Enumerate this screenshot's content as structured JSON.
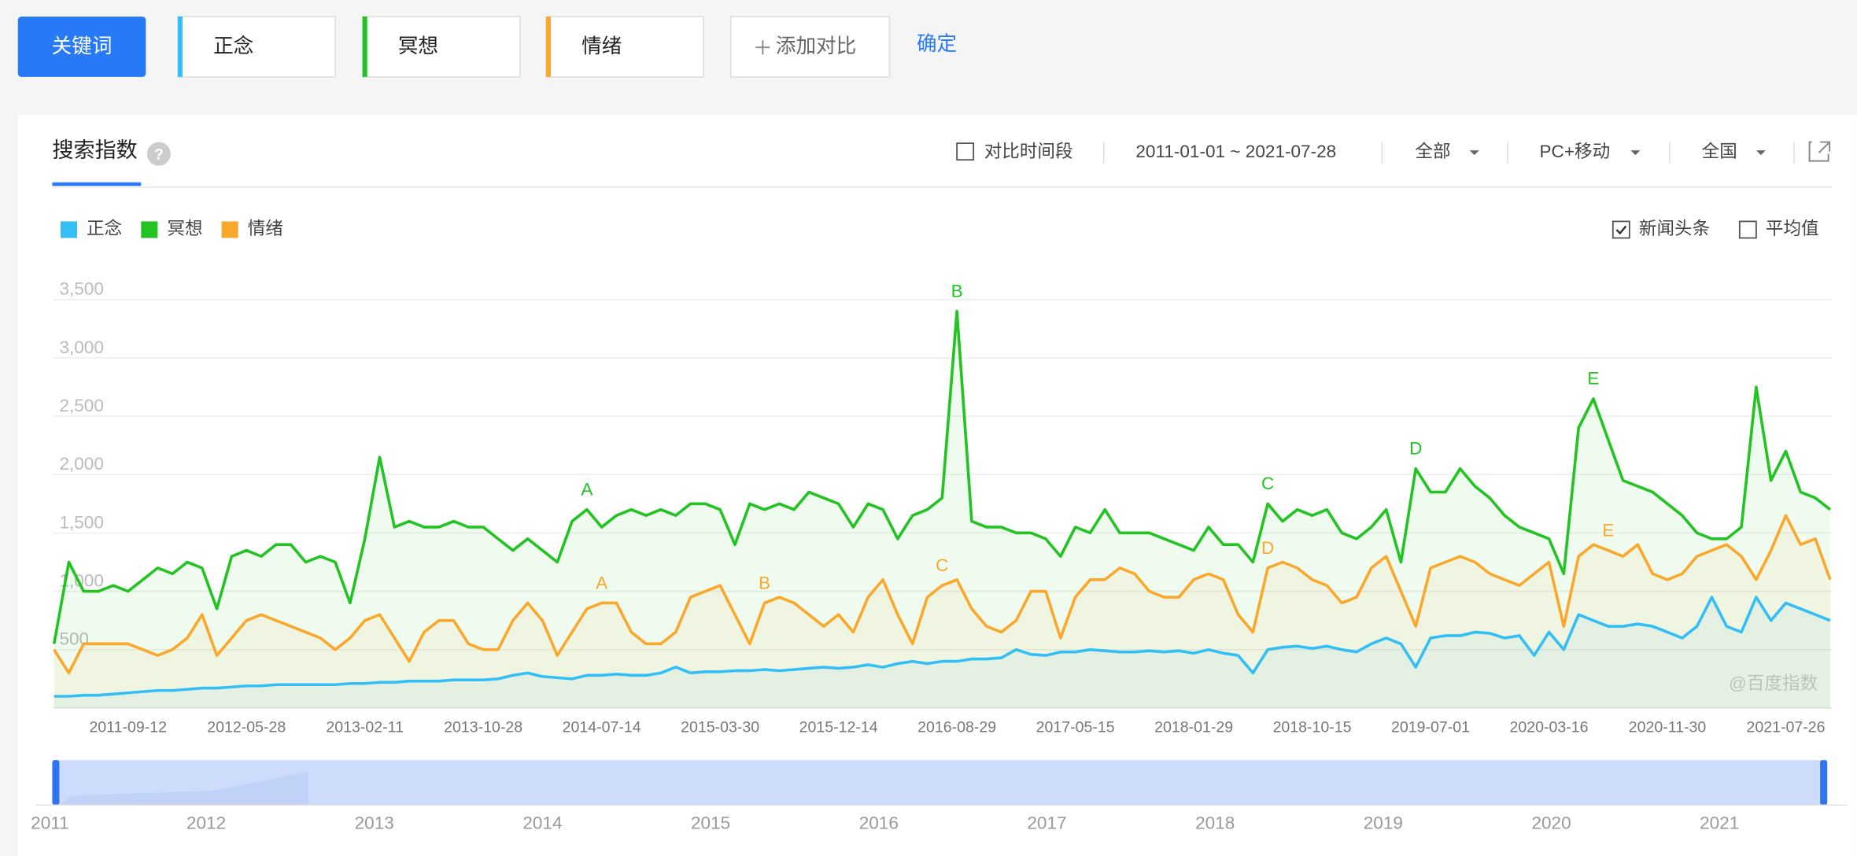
{
  "header": {
    "keyword_button": "关键词",
    "keywords": [
      "正念",
      "冥想",
      "情绪"
    ],
    "add_button": "添加对比",
    "confirm": "确定"
  },
  "panel": {
    "tab": "搜索指数",
    "help": "?",
    "compare_period": "对比时间段",
    "date_range": "2011-01-01 ~ 2021-07-28",
    "filters": [
      "全部",
      "PC+移动",
      "全国"
    ],
    "options": [
      {
        "label": "新闻头条",
        "checked": true
      },
      {
        "label": "平均值",
        "checked": false
      }
    ],
    "watermark": "@百度指数"
  },
  "navigator": {
    "labels": [
      "2011",
      "2012",
      "2013",
      "2014",
      "2015",
      "2016",
      "2017",
      "2018",
      "2019",
      "2020",
      "2021"
    ]
  },
  "chart_data": {
    "type": "line",
    "grid": true,
    "legend": "top-left",
    "ylim": [
      0,
      3500
    ],
    "yticks": [
      {
        "value": 3500,
        "label": "3,500"
      },
      {
        "value": 3000,
        "label": "3,000"
      },
      {
        "value": 2500,
        "label": "2,500"
      },
      {
        "value": 2000,
        "label": "2,000"
      },
      {
        "value": 1500,
        "label": "1,500"
      },
      {
        "value": 1000,
        "label": "1,000"
      },
      500
    ],
    "categories": [
      null,
      null,
      null,
      null,
      null,
      "2011-09-12",
      null,
      null,
      null,
      null,
      null,
      null,
      null,
      "2012-05-28",
      null,
      null,
      null,
      null,
      null,
      null,
      null,
      "2013-02-11",
      null,
      null,
      null,
      null,
      null,
      null,
      null,
      "2013-10-28",
      null,
      null,
      null,
      null,
      null,
      null,
      null,
      "2014-07-14",
      null,
      null,
      null,
      null,
      null,
      null,
      null,
      "2015-03-30",
      null,
      null,
      null,
      null,
      null,
      null,
      null,
      "2015-12-14",
      null,
      null,
      null,
      null,
      null,
      null,
      null,
      "2016-08-29",
      null,
      null,
      null,
      null,
      null,
      null,
      null,
      "2017-05-15",
      null,
      null,
      null,
      null,
      null,
      null,
      null,
      "2018-01-29",
      null,
      null,
      null,
      null,
      null,
      null,
      null,
      "2018-10-15",
      null,
      null,
      null,
      null,
      null,
      null,
      null,
      "2019-07-01",
      null,
      null,
      null,
      null,
      null,
      null,
      null,
      "2020-03-16",
      null,
      null,
      null,
      null,
      null,
      null,
      null,
      "2020-11-30",
      null,
      null,
      null,
      null,
      null,
      null,
      null,
      "2021-07-26",
      null,
      null,
      null
    ],
    "series": [
      {
        "name": "正念",
        "color": "#33bff5",
        "values": [
          100,
          100,
          110,
          110,
          120,
          130,
          140,
          150,
          150,
          160,
          170,
          170,
          180,
          190,
          190,
          200,
          200,
          200,
          200,
          200,
          210,
          210,
          220,
          220,
          230,
          230,
          230,
          240,
          240,
          240,
          250,
          280,
          300,
          270,
          260,
          250,
          280,
          280,
          290,
          280,
          280,
          300,
          350,
          300,
          310,
          310,
          320,
          320,
          330,
          320,
          330,
          340,
          350,
          340,
          350,
          370,
          350,
          380,
          400,
          380,
          400,
          400,
          420,
          420,
          430,
          500,
          460,
          450,
          480,
          480,
          500,
          490,
          480,
          480,
          490,
          480,
          490,
          470,
          500,
          470,
          450,
          300,
          500,
          520,
          530,
          510,
          530,
          500,
          480,
          550,
          600,
          550,
          350,
          600,
          620,
          620,
          650,
          640,
          600,
          620,
          450,
          650,
          500,
          800,
          750,
          700,
          700,
          720,
          700,
          650,
          600,
          700,
          950,
          700,
          650,
          950,
          750,
          900,
          850,
          800,
          750
        ]
      },
      {
        "name": "冥想",
        "color": "#22c322",
        "annotations": [
          "A",
          "B",
          "C",
          "D",
          "E"
        ],
        "values": [
          550,
          1250,
          1000,
          1000,
          1050,
          1000,
          1100,
          1200,
          1150,
          1250,
          1200,
          850,
          1300,
          1350,
          1300,
          1400,
          1400,
          1250,
          1300,
          1250,
          900,
          1450,
          2150,
          1550,
          1600,
          1550,
          1550,
          1600,
          1550,
          1550,
          1450,
          1350,
          1450,
          1350,
          1250,
          1600,
          1700,
          1550,
          1650,
          1700,
          1650,
          1700,
          1650,
          1750,
          1750,
          1700,
          1400,
          1750,
          1700,
          1750,
          1700,
          1850,
          1800,
          1750,
          1550,
          1750,
          1700,
          1450,
          1650,
          1700,
          1800,
          3400,
          1600,
          1550,
          1550,
          1500,
          1500,
          1450,
          1300,
          1550,
          1500,
          1700,
          1500,
          1500,
          1500,
          1450,
          1400,
          1350,
          1550,
          1400,
          1400,
          1250,
          1750,
          1600,
          1700,
          1650,
          1700,
          1500,
          1450,
          1550,
          1700,
          1250,
          2050,
          1850,
          1850,
          2050,
          1900,
          1800,
          1650,
          1550,
          1500,
          1450,
          1150,
          2400,
          2650,
          2300,
          1950,
          1900,
          1850,
          1750,
          1650,
          1500,
          1450,
          1450,
          1550,
          2750,
          1950,
          2200,
          1850,
          1800,
          1700
        ]
      },
      {
        "name": "情绪",
        "color": "#f9a82c",
        "annotations": [
          "A",
          "B",
          "C",
          "D",
          "E"
        ],
        "values": [
          500,
          300,
          550,
          550,
          550,
          550,
          500,
          450,
          500,
          600,
          800,
          450,
          600,
          750,
          800,
          750,
          700,
          650,
          600,
          500,
          600,
          750,
          800,
          600,
          400,
          650,
          750,
          750,
          550,
          500,
          500,
          750,
          900,
          750,
          450,
          650,
          850,
          900,
          900,
          650,
          550,
          550,
          650,
          950,
          1000,
          1050,
          800,
          550,
          900,
          950,
          900,
          800,
          700,
          800,
          650,
          950,
          1100,
          800,
          550,
          950,
          1050,
          1100,
          850,
          700,
          650,
          750,
          1000,
          1000,
          600,
          950,
          1100,
          1100,
          1200,
          1150,
          1000,
          950,
          950,
          1100,
          1150,
          1100,
          800,
          650,
          1200,
          1250,
          1200,
          1100,
          1050,
          900,
          950,
          1200,
          1300,
          1000,
          700,
          1200,
          1250,
          1300,
          1250,
          1150,
          1100,
          1050,
          1150,
          1250,
          700,
          1300,
          1400,
          1350,
          1300,
          1400,
          1150,
          1100,
          1150,
          1300,
          1350,
          1400,
          1300,
          1100,
          1350,
          1650,
          1400,
          1450,
          1100
        ]
      }
    ]
  }
}
